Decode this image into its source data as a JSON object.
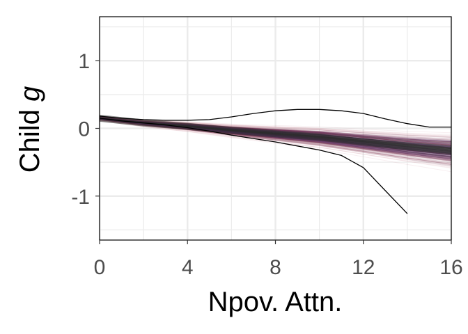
{
  "chart_data": {
    "type": "line",
    "xlabel": "Npov. Attn.",
    "ylabel_main": "Child ",
    "ylabel_italic": "g",
    "xlim": [
      0,
      16
    ],
    "ylim": [
      -1.65,
      1.65
    ],
    "x_ticks": [
      0,
      4,
      8,
      12,
      16
    ],
    "x_tick_labels": [
      "0",
      "4",
      "8",
      "12",
      "16"
    ],
    "y_ticks": [
      1,
      0,
      -1
    ],
    "y_tick_labels": [
      "1",
      "0",
      "-1"
    ],
    "grid": true,
    "legend": "none",
    "series": [
      {
        "role": "central-band",
        "x": [
          0,
          2,
          4,
          6,
          8,
          10,
          12,
          14,
          16
        ],
        "y": [
          0.15,
          0.08,
          0.03,
          -0.03,
          -0.08,
          -0.13,
          -0.2,
          -0.27,
          -0.33
        ]
      },
      {
        "role": "upper-bound",
        "x": [
          0,
          1,
          2,
          3,
          4,
          5,
          6,
          7,
          8,
          9,
          10,
          11,
          12,
          13,
          14,
          15,
          16
        ],
        "y": [
          0.18,
          0.15,
          0.13,
          0.12,
          0.12,
          0.13,
          0.17,
          0.22,
          0.26,
          0.28,
          0.28,
          0.26,
          0.22,
          0.14,
          0.07,
          0.02,
          0.02
        ]
      },
      {
        "role": "lower-bound",
        "x": [
          0,
          1,
          2,
          3,
          4,
          5,
          6,
          7,
          8,
          9,
          10,
          11,
          12,
          13,
          14
        ],
        "y": [
          0.15,
          0.11,
          0.08,
          0.05,
          0.01,
          -0.04,
          -0.1,
          -0.15,
          -0.2,
          -0.26,
          -0.32,
          -0.4,
          -0.58,
          -0.92,
          -1.26
        ]
      }
    ],
    "colors": {
      "band_dark": "#2b2b2b",
      "band_purple": "#5a2a63",
      "band_maroon": "#7a3a55",
      "band_pink": "#d9a5b3",
      "bound_line": "#000000",
      "grid": "#ebebeb"
    }
  }
}
